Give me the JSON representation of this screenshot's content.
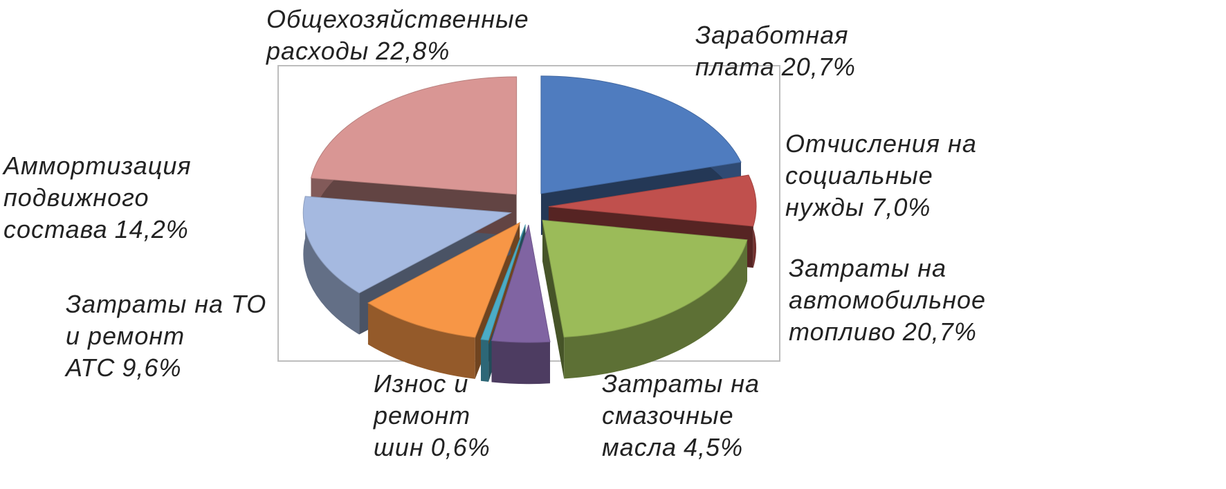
{
  "chart_data": {
    "type": "pie3d",
    "categories": [
      "Заработная плата",
      "Отчисления на социальные нужды",
      "Затраты на автомобильное топливо",
      "Затраты на смазочные масла",
      "Износ и ремонт шин",
      "Затраты на ТО и ремонт АТС",
      "Аммортизация подвижного состава",
      "Общехозяйственные расходы"
    ],
    "values": [
      20.7,
      7.0,
      20.7,
      4.5,
      0.6,
      9.6,
      14.2,
      22.8
    ],
    "value_labels": [
      "20,7%",
      "7,0%",
      "20,7%",
      "4,5%",
      "0,6%",
      "9,6%",
      "14,2%",
      "22,8%"
    ],
    "colors": [
      "#4f7cbf",
      "#c0504d",
      "#9bbb59",
      "#8064a2",
      "#4bacc6",
      "#f79646",
      "#a5b9e0",
      "#d99694"
    ]
  }
}
